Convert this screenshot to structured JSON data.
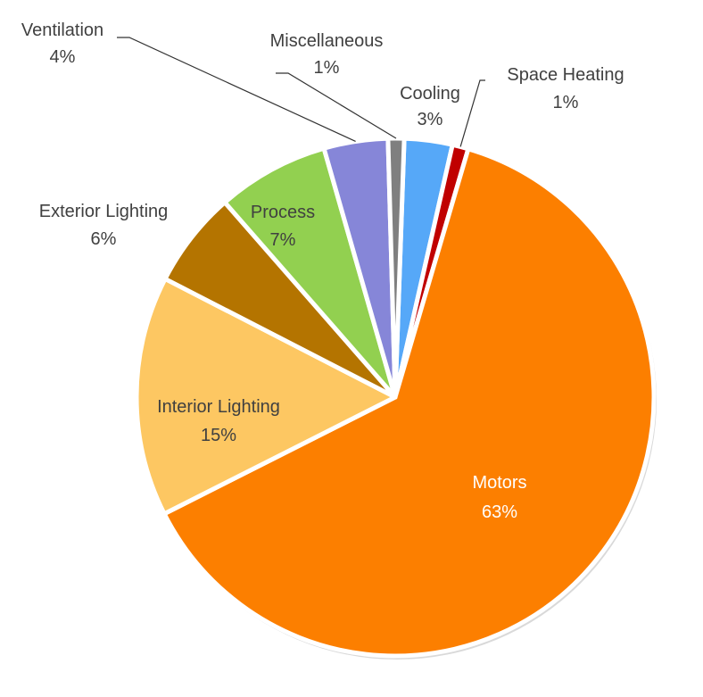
{
  "chart_data": {
    "type": "pie",
    "title": "",
    "start_angle_deg": 2,
    "direction": "clockwise",
    "slices": [
      {
        "label": "Cooling",
        "value": 3,
        "value_label": "3%",
        "color": "#56a8f8"
      },
      {
        "label": "Space Heating",
        "value": 1,
        "value_label": "1%",
        "color": "#c00000"
      },
      {
        "label": "Motors",
        "value": 63,
        "value_label": "63%",
        "color": "#fc7f00"
      },
      {
        "label": "Interior Lighting",
        "value": 15,
        "value_label": "15%",
        "color": "#fdc762"
      },
      {
        "label": "Exterior Lighting",
        "value": 6,
        "value_label": "6%",
        "color": "#b47400"
      },
      {
        "label": "Process",
        "value": 7,
        "value_label": "7%",
        "color": "#92d050"
      },
      {
        "label": "Ventilation",
        "value": 4,
        "value_label": "4%",
        "color": "#8686d8"
      },
      {
        "label": "Miscellaneous",
        "value": 1,
        "value_label": "1%",
        "color": "#7f7f7f"
      }
    ]
  }
}
